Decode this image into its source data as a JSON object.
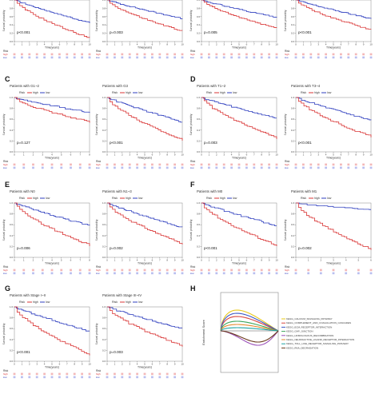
{
  "legend": {
    "title": "Risk",
    "high": "high",
    "low": "low"
  },
  "axis": {
    "ylabel": "Survival probability",
    "xlabel": "Time(years)",
    "yticks": [
      "0.0",
      "0.2",
      "0.4",
      "0.6",
      "0.8",
      "1.0"
    ]
  },
  "risk_table": {
    "title": "Risk",
    "rows": [
      "high",
      "low"
    ]
  },
  "colors": {
    "high": "#d93434",
    "low": "#2f3fbf",
    "gsea_baseline": "#555555"
  },
  "panel_labels": {
    "C": "C",
    "D": "D",
    "E": "E",
    "F": "F",
    "G": "G",
    "H": "H"
  },
  "panels": [
    {
      "id": "top1",
      "title": "",
      "pvalue": "p<0.001",
      "xmax": 10
    },
    {
      "id": "top2",
      "title": "",
      "pvalue": "p=0.003",
      "xmax": 10
    },
    {
      "id": "top3",
      "title": "",
      "pvalue": "p=0.005",
      "xmax": 10
    },
    {
      "id": "top4",
      "title": "",
      "pvalue": "p<0.001",
      "xmax": 10
    },
    {
      "id": "c1",
      "title": "Patients with G1~2",
      "pvalue": "p=0.127",
      "xmax": 8
    },
    {
      "id": "c2",
      "title": "Patients with G3",
      "pvalue": "p<0.001",
      "xmax": 10
    },
    {
      "id": "d1",
      "title": "Patients with T1~2",
      "pvalue": "p=0.003",
      "xmax": 10
    },
    {
      "id": "d2",
      "title": "Patients with T3~4",
      "pvalue": "p<0.001",
      "xmax": 10
    },
    {
      "id": "e1",
      "title": "Patients with N0",
      "pvalue": "p=0.006",
      "xmax": 8
    },
    {
      "id": "e2",
      "title": "Patients with N1~3",
      "pvalue": "p=0.002",
      "xmax": 10
    },
    {
      "id": "f1",
      "title": "Patients with M0",
      "pvalue": "p<0.001",
      "xmax": 10
    },
    {
      "id": "f2",
      "title": "Patients with M1",
      "pvalue": "p=0.002",
      "xmax": 6
    },
    {
      "id": "g1",
      "title": "Patients with Stage I~II",
      "pvalue": "p<0.001",
      "xmax": 10
    },
    {
      "id": "g2",
      "title": "Patients with Stage III~IV",
      "pvalue": "p=0.003",
      "xmax": 10
    }
  ],
  "gsea": {
    "ylabel": "Enrichment Score",
    "pathways": [
      {
        "name": "KEGG_CALCIUM_SIGNALING_PATHWAY",
        "color": "#e8c81a"
      },
      {
        "name": "KEGG_COMPLEMENT_AND_COAGULATION_CASCADES",
        "color": "#d9473f"
      },
      {
        "name": "KEGG_ECM_RECEPTOR_INTERACTION",
        "color": "#3b57c4"
      },
      {
        "name": "KEGG_GAP_JUNCTION",
        "color": "#3aa55a"
      },
      {
        "name": "KEGG_HOMOLOGOUS_RECOMBINATION",
        "color": "#9a4fb8"
      },
      {
        "name": "KEGG_NEUROACTIVE_LIGAND_RECEPTOR_INTERACTION",
        "color": "#e38a2f"
      },
      {
        "name": "KEGG_TOLL_LIKE_RECEPTOR_SIGNALING_PATHWAY",
        "color": "#1fa3a3"
      },
      {
        "name": "KEGG_RNA_DEGRADATION",
        "color": "#6b3b1c"
      }
    ]
  }
}
